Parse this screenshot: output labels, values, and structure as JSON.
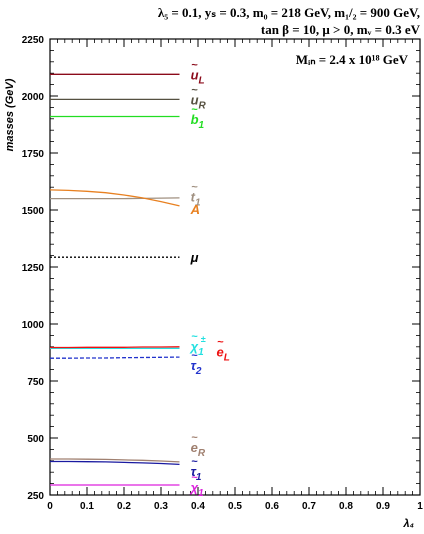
{
  "header": {
    "line1": "λ₅ = 0.1, yₛ = 0.3, m₀ = 218 GeV, m₁/₂ = 900 GeV,",
    "line2": "tan β = 10,  μ > 0, mᵥ = 0.3 eV"
  },
  "chart_data": {
    "type": "line",
    "annotation": "Mᵢₙ = 2.4 x 10¹⁸ GeV",
    "xlabel": "λ₄",
    "ylabel": "masses  (GeV)",
    "xlim": [
      0,
      1
    ],
    "ylim": [
      250,
      2250
    ],
    "xticks": [
      "0",
      "0.1",
      "0.2",
      "0.3",
      "0.4",
      "0.5",
      "0.6",
      "0.7",
      "0.8",
      "0.9",
      "1"
    ],
    "yticks": [
      "250",
      "500",
      "750",
      "1000",
      "1250",
      "1500",
      "1750",
      "2000",
      "2250"
    ],
    "grid": false,
    "series": [
      {
        "name": "ũL",
        "label": "u",
        "sub": "L",
        "color": "#8b0a1a",
        "dash": "",
        "x": [
          0,
          0.35
        ],
        "y": [
          2095,
          2095
        ],
        "label_y": 2095
      },
      {
        "name": "ũR",
        "label": "u",
        "sub": "R",
        "color": "#555040",
        "dash": "",
        "x": [
          0,
          0.35
        ],
        "y": [
          1985,
          1985
        ],
        "label_y": 1985
      },
      {
        "name": "b̃1",
        "label": "b",
        "sub": "1",
        "color": "#22dd22",
        "dash": "",
        "x": [
          0,
          0.35
        ],
        "y": [
          1910,
          1910
        ],
        "label_y": 1900
      },
      {
        "name": "t̃1",
        "label": "t",
        "sub": "1",
        "color": "#a09080",
        "dash": "",
        "x": [
          0,
          0.05,
          0.1,
          0.15,
          0.2,
          0.25,
          0.3,
          0.35
        ],
        "y": [
          1550,
          1550,
          1550,
          1550,
          1550,
          1551,
          1552,
          1553
        ],
        "label_y": 1560
      },
      {
        "name": "A",
        "label": "A",
        "sub": "",
        "color": "#e88020",
        "dash": "",
        "x": [
          0,
          0.05,
          0.1,
          0.15,
          0.2,
          0.25,
          0.3,
          0.35
        ],
        "y": [
          1588,
          1586,
          1582,
          1576,
          1566,
          1553,
          1537,
          1518
        ],
        "label_y": 1505
      },
      {
        "name": "μ",
        "label": "μ",
        "sub": "",
        "color": "#000000",
        "dash": "2,2",
        "x": [
          0,
          0.35
        ],
        "y": [
          1293,
          1293
        ],
        "label_y": 1293
      },
      {
        "name": "χ̃1±",
        "label": "χ",
        "sub": "1",
        "sup": "±",
        "color": "#22e0e0",
        "dash": "",
        "x": [
          0,
          0.35
        ],
        "y": [
          893,
          893
        ],
        "label_y": 903
      },
      {
        "name": "ẽL",
        "label": "e",
        "sub": "L",
        "color": "#ee1111",
        "dash": "",
        "x": [
          0,
          0.05,
          0.1,
          0.15,
          0.2,
          0.25,
          0.3,
          0.35
        ],
        "y": [
          897,
          897,
          898,
          898,
          898,
          899,
          899,
          900
        ],
        "label_y": 880
      },
      {
        "name": "τ̃2",
        "label": "τ",
        "sub": "2",
        "color": "#2233cc",
        "dash": "4,2",
        "x": [
          0,
          0.05,
          0.1,
          0.15,
          0.2,
          0.25,
          0.3,
          0.35
        ],
        "y": [
          850,
          850,
          851,
          851,
          852,
          853,
          854,
          855
        ],
        "label_y": 820
      },
      {
        "name": "ẽR",
        "label": "e",
        "sub": "R",
        "color": "#a08070",
        "dash": "",
        "x": [
          0,
          0.05,
          0.1,
          0.15,
          0.2,
          0.25,
          0.3,
          0.35
        ],
        "y": [
          408,
          408,
          407,
          406,
          404,
          402,
          399,
          395
        ],
        "label_y": 460
      },
      {
        "name": "τ̃1",
        "label": "τ",
        "sub": "1",
        "color": "#1a1aa0",
        "dash": "",
        "x": [
          0,
          0.05,
          0.1,
          0.15,
          0.2,
          0.25,
          0.3,
          0.35
        ],
        "y": [
          397,
          397,
          396,
          395,
          393,
          391,
          388,
          384
        ],
        "label_y": 355
      },
      {
        "name": "χ̃1",
        "label": "χ",
        "sub": "1",
        "color": "#dd22dd",
        "dash": "",
        "x": [
          0,
          0.35
        ],
        "y": [
          294,
          294
        ],
        "label_y": 285
      }
    ]
  }
}
